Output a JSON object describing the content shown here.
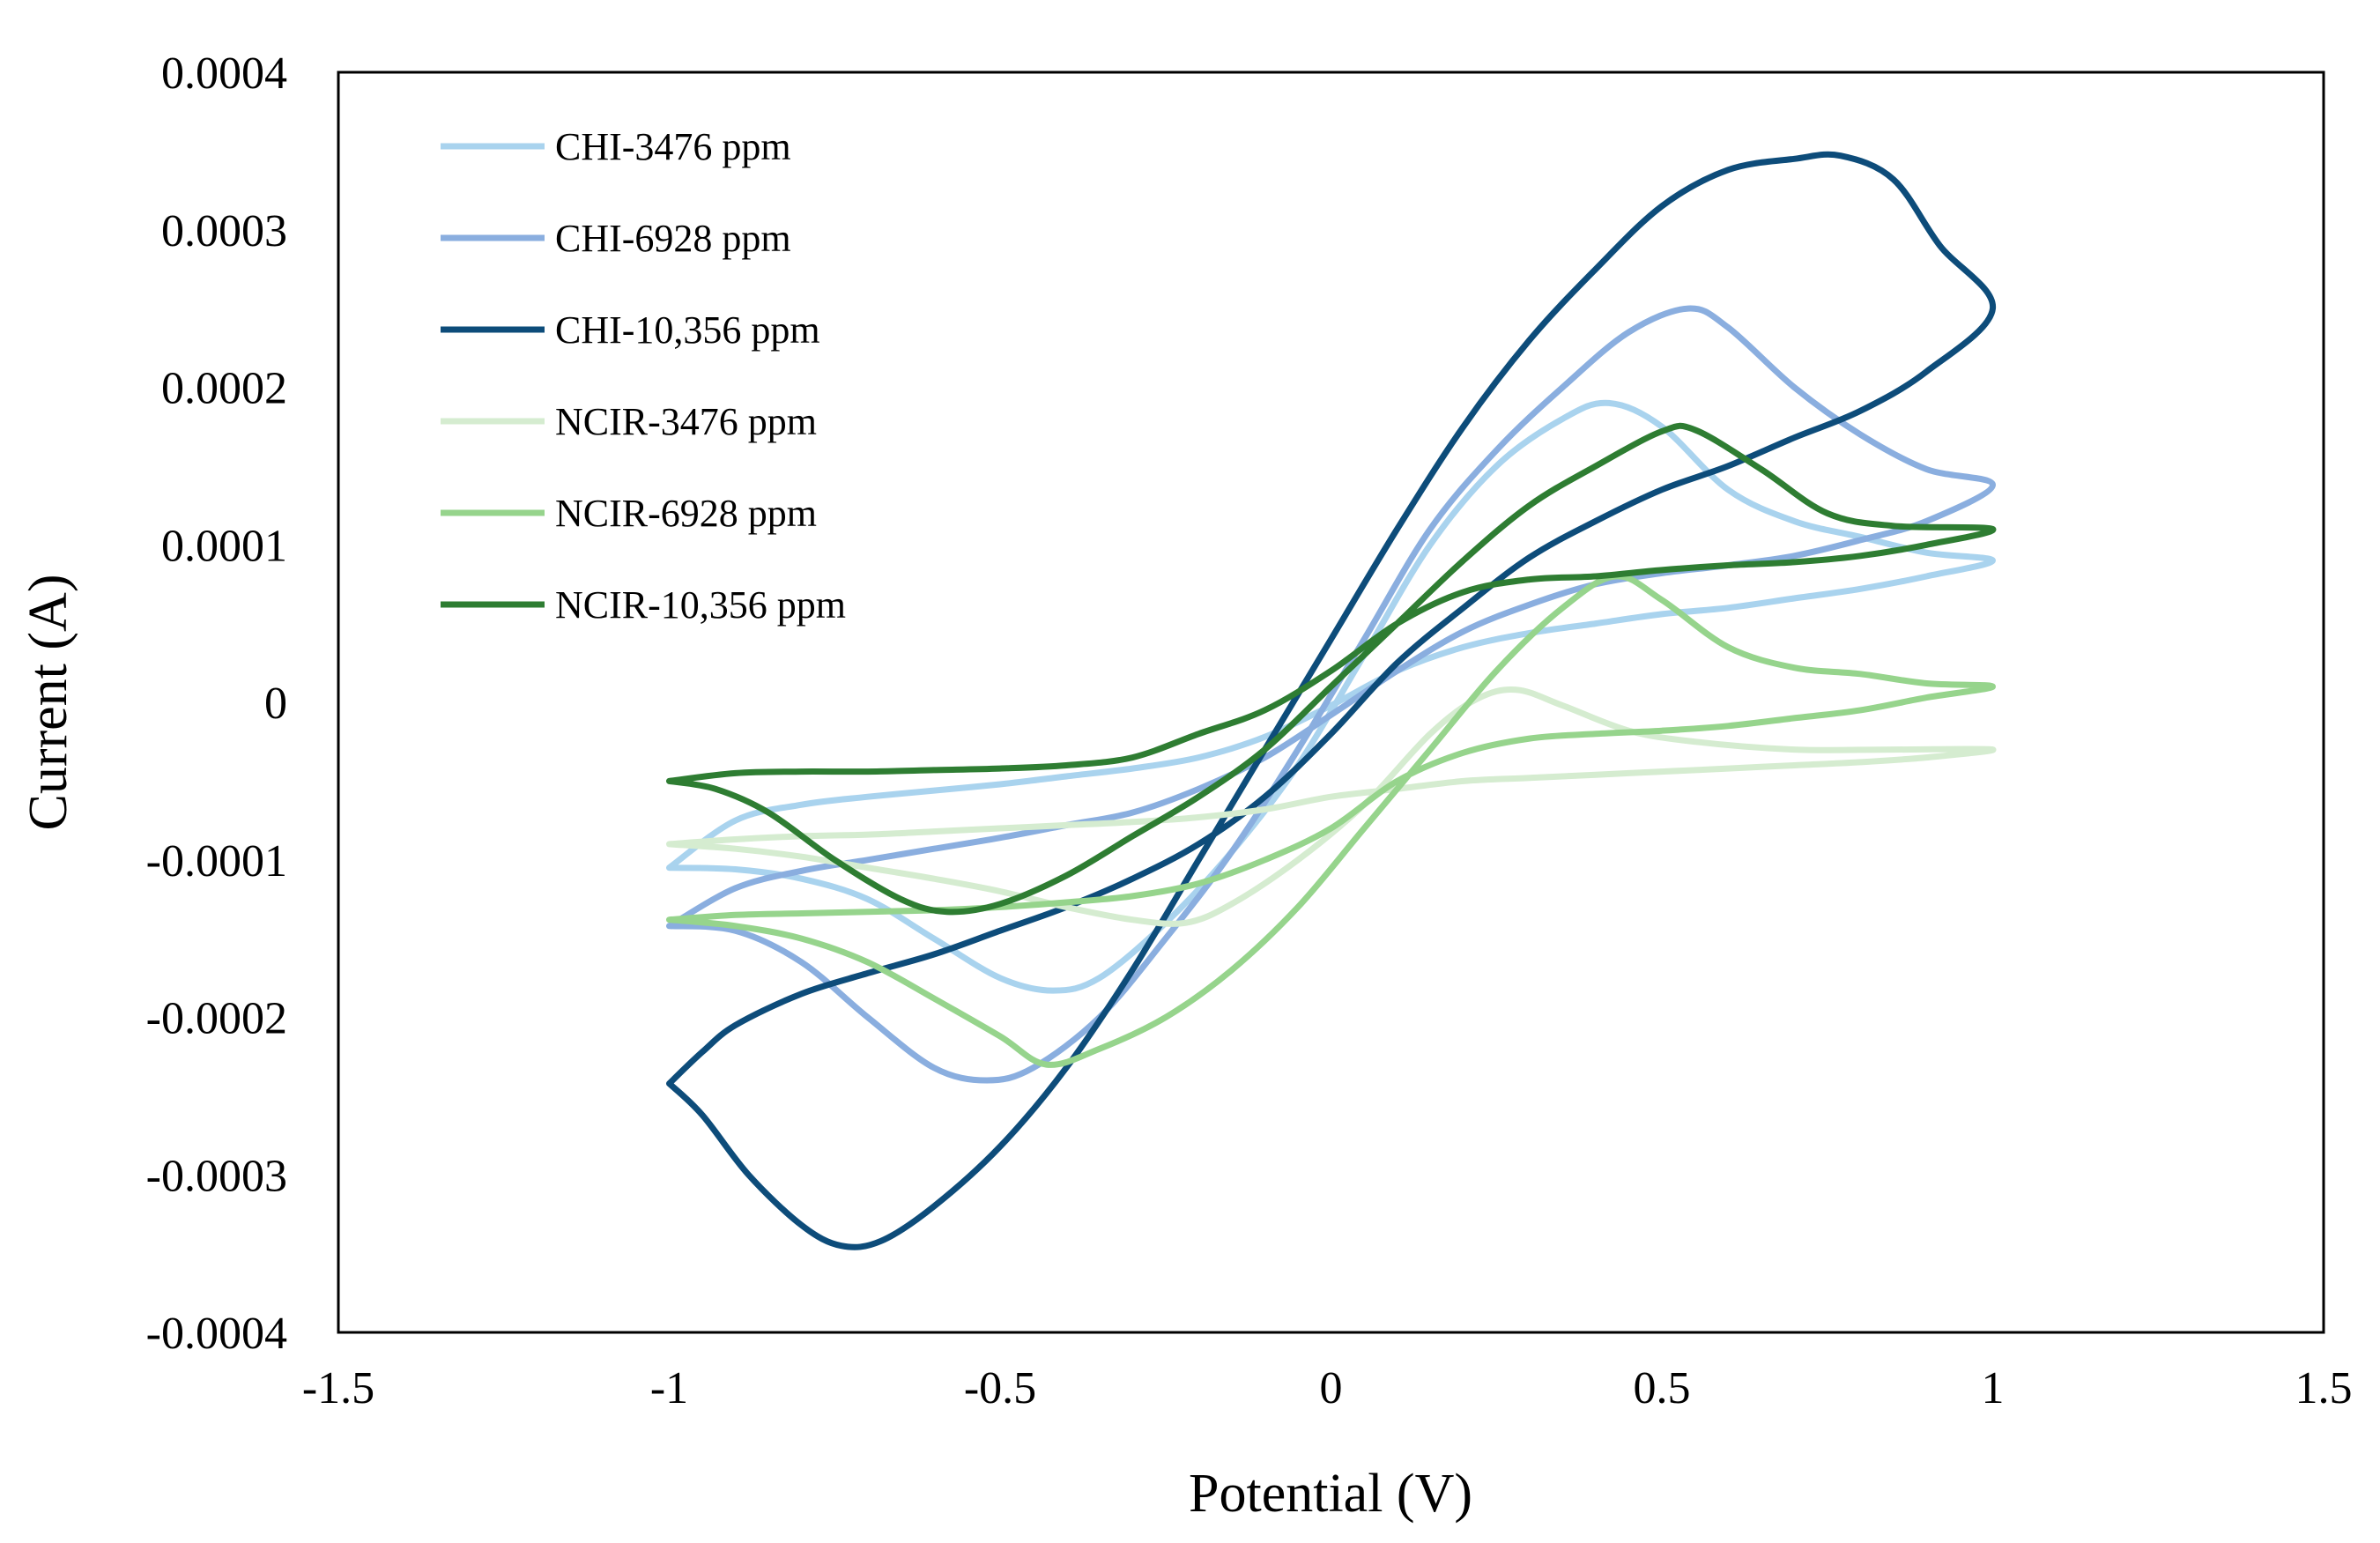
{
  "chart_data": {
    "type": "line",
    "title": "",
    "xlabel": "Potential (V)",
    "ylabel": "Current (A)",
    "xlim": [
      -1.5,
      1.5
    ],
    "ylim": [
      -0.0004,
      0.0004
    ],
    "x_ticks": [
      "-1.5",
      "-1",
      "-0.5",
      "0",
      "0.5",
      "1",
      "1.5"
    ],
    "y_ticks": [
      "0.0004",
      "0.0003",
      "0.0002",
      "0.0001",
      "0",
      "-0.0001",
      "-0.0002",
      "-0.0003",
      "-0.0004"
    ],
    "grid": false,
    "legend_position": "top-left",
    "series": [
      {
        "name": "CHI-3476 ppm",
        "color": "#a9d3ee",
        "points": [
          [
            -1,
            -0.000105
          ],
          [
            -0.9,
            -0.000106
          ],
          [
            -0.8,
            -0.000112
          ],
          [
            -0.7,
            -0.000125
          ],
          [
            -0.6,
            -0.00015
          ],
          [
            -0.5,
            -0.000175
          ],
          [
            -0.42,
            -0.000183
          ],
          [
            -0.35,
            -0.000175
          ],
          [
            -0.25,
            -0.00014
          ],
          [
            -0.15,
            -9.5e-05
          ],
          [
            -0.05,
            -4e-05
          ],
          [
            0.05,
            3e-05
          ],
          [
            0.15,
            0.0001
          ],
          [
            0.25,
            0.00015
          ],
          [
            0.35,
            0.00018
          ],
          [
            0.42,
            0.00019
          ],
          [
            0.5,
            0.000175
          ],
          [
            0.6,
            0.000135
          ],
          [
            0.7,
            0.000115
          ],
          [
            0.8,
            0.000105
          ],
          [
            0.9,
            9.5e-05
          ],
          [
            1,
            9e-05
          ],
          [
            0.9,
            8e-05
          ],
          [
            0.8,
            7.2e-05
          ],
          [
            0.7,
            6.6e-05
          ],
          [
            0.6,
            6e-05
          ],
          [
            0.5,
            5.6e-05
          ],
          [
            0.4,
            5e-05
          ],
          [
            0.3,
            4.4e-05
          ],
          [
            0.2,
            3.5e-05
          ],
          [
            0.1,
            2e-05
          ],
          [
            0,
            -2e-06
          ],
          [
            -0.1,
            -2.2e-05
          ],
          [
            -0.2,
            -3.5e-05
          ],
          [
            -0.3,
            -4.2e-05
          ],
          [
            -0.4,
            -4.7e-05
          ],
          [
            -0.5,
            -5.2e-05
          ],
          [
            -0.6,
            -5.6e-05
          ],
          [
            -0.7,
            -6e-05
          ],
          [
            -0.8,
            -6.5e-05
          ],
          [
            -0.9,
            -7.5e-05
          ],
          [
            -1,
            -0.000105
          ]
        ]
      },
      {
        "name": "CHI-6928 ppm",
        "color": "#8aaedf",
        "points": [
          [
            -1,
            -0.000142
          ],
          [
            -0.9,
            -0.000145
          ],
          [
            -0.8,
            -0.000165
          ],
          [
            -0.7,
            -0.0002
          ],
          [
            -0.6,
            -0.000232
          ],
          [
            -0.52,
            -0.00024
          ],
          [
            -0.45,
            -0.000232
          ],
          [
            -0.35,
            -0.0002
          ],
          [
            -0.25,
            -0.00015
          ],
          [
            -0.15,
            -9.5e-05
          ],
          [
            -0.05,
            -3e-05
          ],
          [
            0.05,
            4e-05
          ],
          [
            0.15,
            0.00011
          ],
          [
            0.25,
            0.00016
          ],
          [
            0.35,
            0.0002
          ],
          [
            0.45,
            0.000235
          ],
          [
            0.54,
            0.00025
          ],
          [
            0.6,
            0.000238
          ],
          [
            0.7,
            0.0002
          ],
          [
            0.8,
            0.00017
          ],
          [
            0.9,
            0.000148
          ],
          [
            1,
            0.000138
          ],
          [
            0.9,
            0.000115
          ],
          [
            0.8,
            0.000103
          ],
          [
            0.7,
            9.3e-05
          ],
          [
            0.6,
            8.7e-05
          ],
          [
            0.5,
            8.2e-05
          ],
          [
            0.4,
            7.5e-05
          ],
          [
            0.3,
            6.2e-05
          ],
          [
            0.2,
            4.5e-05
          ],
          [
            0.1,
            2e-05
          ],
          [
            0,
            -8e-06
          ],
          [
            -0.1,
            -3.5e-05
          ],
          [
            -0.2,
            -5.5e-05
          ],
          [
            -0.3,
            -7e-05
          ],
          [
            -0.4,
            -7.8e-05
          ],
          [
            -0.5,
            -8.6e-05
          ],
          [
            -0.6,
            -9.3e-05
          ],
          [
            -0.7,
            -0.0001
          ],
          [
            -0.8,
            -0.000107
          ],
          [
            -0.9,
            -0.000118
          ],
          [
            -1,
            -0.000142
          ]
        ]
      },
      {
        "name": "CHI-10,356 ppm",
        "color": "#0d4c7a",
        "points": [
          [
            -1,
            -0.000242
          ],
          [
            -0.95,
            -0.000262
          ],
          [
            -0.88,
            -0.0003
          ],
          [
            -0.8,
            -0.000332
          ],
          [
            -0.74,
            -0.000345
          ],
          [
            -0.68,
            -0.000342
          ],
          [
            -0.6,
            -0.00032
          ],
          [
            -0.5,
            -0.000282
          ],
          [
            -0.4,
            -0.000232
          ],
          [
            -0.3,
            -0.00017
          ],
          [
            -0.2,
            -0.0001
          ],
          [
            -0.1,
            -3e-05
          ],
          [
            0,
            4e-05
          ],
          [
            0.1,
            0.00011
          ],
          [
            0.2,
            0.000175
          ],
          [
            0.3,
            0.00023
          ],
          [
            0.4,
            0.000275
          ],
          [
            0.5,
            0.000315
          ],
          [
            0.6,
            0.000338
          ],
          [
            0.7,
            0.000345
          ],
          [
            0.77,
            0.000347
          ],
          [
            0.85,
            0.000332
          ],
          [
            0.92,
            0.00029
          ],
          [
            1,
            0.00025
          ],
          [
            0.9,
            0.00021
          ],
          [
            0.8,
            0.000185
          ],
          [
            0.7,
            0.000168
          ],
          [
            0.6,
            0.00015
          ],
          [
            0.5,
            0.000135
          ],
          [
            0.4,
            0.000115
          ],
          [
            0.3,
            9.2e-05
          ],
          [
            0.2,
            6e-05
          ],
          [
            0.1,
            2.5e-05
          ],
          [
            0,
            -2e-05
          ],
          [
            -0.1,
            -6e-05
          ],
          [
            -0.2,
            -9e-05
          ],
          [
            -0.3,
            -0.000112
          ],
          [
            -0.4,
            -0.00013
          ],
          [
            -0.5,
            -0.000145
          ],
          [
            -0.6,
            -0.00016
          ],
          [
            -0.7,
            -0.000172
          ],
          [
            -0.8,
            -0.000185
          ],
          [
            -0.9,
            -0.000205
          ],
          [
            -0.95,
            -0.000222
          ],
          [
            -1,
            -0.000242
          ]
        ]
      },
      {
        "name": "NCIR-3476 ppm",
        "color": "#d5ecd0",
        "points": [
          [
            -1,
            -9e-05
          ],
          [
            -0.9,
            -9.3e-05
          ],
          [
            -0.8,
            -9.8e-05
          ],
          [
            -0.7,
            -0.000105
          ],
          [
            -0.6,
            -0.000112
          ],
          [
            -0.5,
            -0.00012
          ],
          [
            -0.4,
            -0.00013
          ],
          [
            -0.3,
            -0.000138
          ],
          [
            -0.22,
            -0.00014
          ],
          [
            -0.15,
            -0.000128
          ],
          [
            -0.05,
            -0.0001
          ],
          [
            0.05,
            -6.5e-05
          ],
          [
            0.15,
            -2e-05
          ],
          [
            0.22,
            2e-06
          ],
          [
            0.28,
            8e-06
          ],
          [
            0.35,
            -2e-06
          ],
          [
            0.45,
            -1.8e-05
          ],
          [
            0.55,
            -2.5e-05
          ],
          [
            0.7,
            -3e-05
          ],
          [
            0.85,
            -3e-05
          ],
          [
            1,
            -3e-05
          ],
          [
            0.9,
            -3.5e-05
          ],
          [
            0.8,
            -3.8e-05
          ],
          [
            0.7,
            -4e-05
          ],
          [
            0.6,
            -4.2e-05
          ],
          [
            0.5,
            -4.4e-05
          ],
          [
            0.4,
            -4.6e-05
          ],
          [
            0.3,
            -4.8e-05
          ],
          [
            0.2,
            -5e-05
          ],
          [
            0.1,
            -5.5e-05
          ],
          [
            0,
            -6e-05
          ],
          [
            -0.1,
            -6.8e-05
          ],
          [
            -0.2,
            -7.3e-05
          ],
          [
            -0.3,
            -7.6e-05
          ],
          [
            -0.4,
            -7.8e-05
          ],
          [
            -0.5,
            -8e-05
          ],
          [
            -0.6,
            -8.2e-05
          ],
          [
            -0.7,
            -8.4e-05
          ],
          [
            -0.8,
            -8.5e-05
          ],
          [
            -0.9,
            -8.7e-05
          ],
          [
            -1,
            -9e-05
          ]
        ]
      },
      {
        "name": "NCIR-6928 ppm",
        "color": "#96d48c",
        "points": [
          [
            -1,
            -0.000138
          ],
          [
            -0.9,
            -0.000142
          ],
          [
            -0.8,
            -0.00015
          ],
          [
            -0.7,
            -0.000165
          ],
          [
            -0.6,
            -0.000188
          ],
          [
            -0.5,
            -0.000212
          ],
          [
            -0.43,
            -0.00023
          ],
          [
            -0.35,
            -0.00022
          ],
          [
            -0.25,
            -0.0002
          ],
          [
            -0.15,
            -0.00017
          ],
          [
            -0.05,
            -0.00013
          ],
          [
            0.05,
            -8e-05
          ],
          [
            0.15,
            -3e-05
          ],
          [
            0.25,
            2e-05
          ],
          [
            0.35,
            6e-05
          ],
          [
            0.43,
            8e-05
          ],
          [
            0.5,
            6.5e-05
          ],
          [
            0.6,
            3.5e-05
          ],
          [
            0.7,
            2.2e-05
          ],
          [
            0.8,
            1.8e-05
          ],
          [
            0.9,
            1.2e-05
          ],
          [
            1,
            1e-05
          ],
          [
            0.9,
            3e-06
          ],
          [
            0.8,
            -5e-06
          ],
          [
            0.7,
            -1e-05
          ],
          [
            0.6,
            -1.5e-05
          ],
          [
            0.5,
            -1.8e-05
          ],
          [
            0.4,
            -2e-05
          ],
          [
            0.3,
            -2.3e-05
          ],
          [
            0.2,
            -3.2e-05
          ],
          [
            0.1,
            -5e-05
          ],
          [
            0,
            -8e-05
          ],
          [
            -0.1,
            -0.0001
          ],
          [
            -0.2,
            -0.000115
          ],
          [
            -0.3,
            -0.000123
          ],
          [
            -0.4,
            -0.000127
          ],
          [
            -0.5,
            -0.00013
          ],
          [
            -0.6,
            -0.000132
          ],
          [
            -0.7,
            -0.000133
          ],
          [
            -0.8,
            -0.000134
          ],
          [
            -0.9,
            -0.000135
          ],
          [
            -1,
            -0.000138
          ]
        ]
      },
      {
        "name": "NCIR-10,356 ppm",
        "color": "#2e7d32",
        "points": [
          [
            -1,
            -5e-05
          ],
          [
            -0.93,
            -5.5e-05
          ],
          [
            -0.85,
            -7e-05
          ],
          [
            -0.75,
            -0.0001
          ],
          [
            -0.65,
            -0.000125
          ],
          [
            -0.58,
            -0.000133
          ],
          [
            -0.5,
            -0.000128
          ],
          [
            -0.4,
            -0.00011
          ],
          [
            -0.3,
            -8.5e-05
          ],
          [
            -0.2,
            -6e-05
          ],
          [
            -0.1,
            -3e-05
          ],
          [
            0,
            1e-05
          ],
          [
            0.1,
            5e-05
          ],
          [
            0.2,
            9e-05
          ],
          [
            0.3,
            0.000125
          ],
          [
            0.4,
            0.00015
          ],
          [
            0.5,
            0.000172
          ],
          [
            0.55,
            0.000173
          ],
          [
            0.65,
            0.000148
          ],
          [
            0.75,
            0.00012
          ],
          [
            0.85,
            0.000112
          ],
          [
            1,
            0.00011
          ],
          [
            0.9,
            0.0001
          ],
          [
            0.8,
            9.3e-05
          ],
          [
            0.7,
            8.9e-05
          ],
          [
            0.6,
            8.7e-05
          ],
          [
            0.5,
            8.4e-05
          ],
          [
            0.4,
            8e-05
          ],
          [
            0.3,
            7.8e-05
          ],
          [
            0.2,
            7e-05
          ],
          [
            0.1,
            5e-05
          ],
          [
            0,
            2e-05
          ],
          [
            -0.1,
            -5e-06
          ],
          [
            -0.2,
            -2e-05
          ],
          [
            -0.3,
            -3.5e-05
          ],
          [
            -0.4,
            -4e-05
          ],
          [
            -0.5,
            -4.2e-05
          ],
          [
            -0.6,
            -4.3e-05
          ],
          [
            -0.7,
            -4.4e-05
          ],
          [
            -0.8,
            -4.4e-05
          ],
          [
            -0.9,
            -4.5e-05
          ],
          [
            -1,
            -5e-05
          ]
        ]
      }
    ]
  }
}
